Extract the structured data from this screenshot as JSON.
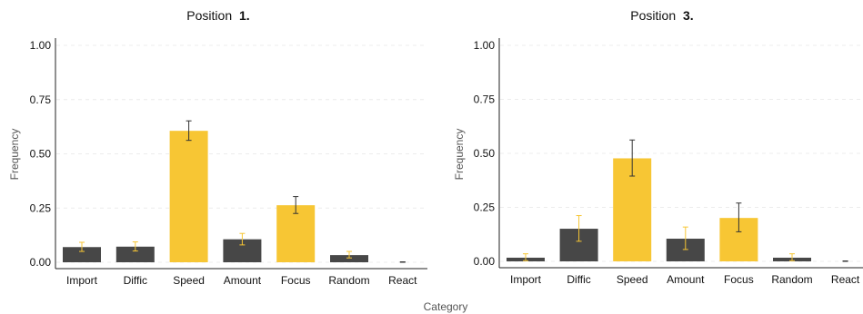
{
  "figure": {
    "shared_xlabel": "Category",
    "shared_ylabel": "Frequency"
  },
  "colors": {
    "dark_bar": "#474747",
    "highlight_bar": "#f7c634",
    "grid": "#ececec",
    "axis": "#222222"
  },
  "chart_data": [
    {
      "type": "bar",
      "title_prefix": "Position",
      "title_bold": "1.",
      "xlabel": "Category",
      "ylabel": "Frequency",
      "ylim": [
        0,
        1
      ],
      "yticks": [
        "0.00",
        "0.25",
        "0.50",
        "0.75",
        "1.00"
      ],
      "grid": true,
      "categories": [
        "Import",
        "Diffic",
        "Speed",
        "Amount",
        "Focus",
        "Random",
        "React"
      ],
      "values": [
        0.07,
        0.072,
        0.606,
        0.106,
        0.263,
        0.033,
        0.0
      ],
      "err_low": [
        0.05,
        0.052,
        0.562,
        0.08,
        0.225,
        0.02,
        0.0
      ],
      "err_high": [
        0.092,
        0.094,
        0.652,
        0.133,
        0.303,
        0.05,
        0.002
      ],
      "highlight": [
        false,
        false,
        true,
        false,
        true,
        false,
        true
      ]
    },
    {
      "type": "bar",
      "title_prefix": "Position",
      "title_bold": "3.",
      "xlabel": "Category",
      "ylabel": "Frequency",
      "ylim": [
        0,
        1
      ],
      "yticks": [
        "0.00",
        "0.25",
        "0.50",
        "0.75",
        "1.00"
      ],
      "grid": true,
      "categories": [
        "Import",
        "Diffic",
        "Speed",
        "Amount",
        "Focus",
        "Random",
        "React"
      ],
      "values": [
        0.017,
        0.151,
        0.477,
        0.105,
        0.201,
        0.017,
        0.0
      ],
      "err_low": [
        0.003,
        0.093,
        0.395,
        0.055,
        0.137,
        0.003,
        0.0
      ],
      "err_high": [
        0.035,
        0.212,
        0.562,
        0.159,
        0.27,
        0.035,
        0.002
      ],
      "highlight": [
        false,
        false,
        true,
        false,
        true,
        false,
        true
      ]
    }
  ]
}
